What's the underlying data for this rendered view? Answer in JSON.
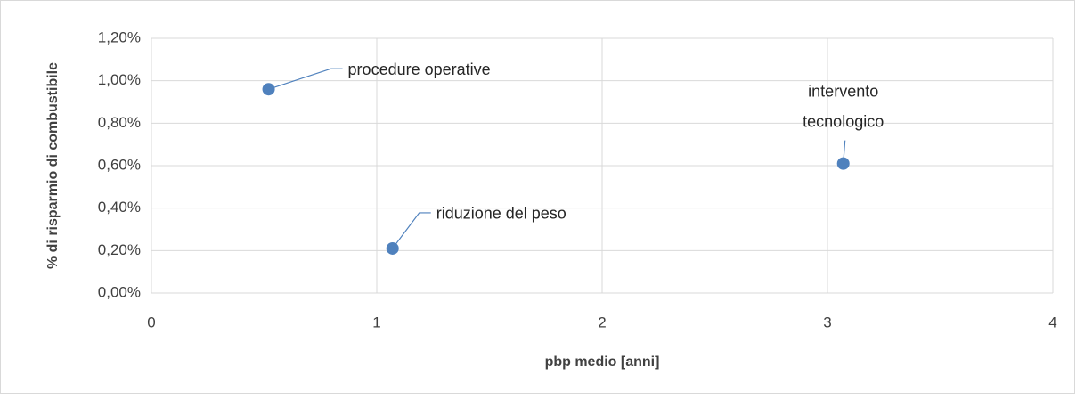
{
  "chart_data": {
    "type": "scatter",
    "xlabel": "pbp medio [anni]",
    "ylabel": "% di risparmio di combustibile",
    "xlim": [
      0,
      4
    ],
    "xticks": [
      0,
      1,
      2,
      3,
      4
    ],
    "ylim": [
      0,
      1.2
    ],
    "yticks": [
      {
        "value": 0,
        "label": "0,00%"
      },
      {
        "value": 0.2,
        "label": "0,20%"
      },
      {
        "value": 0.4,
        "label": "0,40%"
      },
      {
        "value": 0.6,
        "label": "0,60%"
      },
      {
        "value": 0.8,
        "label": "0,80%"
      },
      {
        "value": 1.0,
        "label": "1,00%"
      },
      {
        "value": 1.2,
        "label": "1,20%"
      }
    ],
    "grid": true,
    "color": "#4f81bd",
    "x": [
      0.52,
      1.07,
      3.07
    ],
    "values": [
      0.96,
      0.21,
      0.61
    ],
    "point_labels": [
      [
        "procedure operative"
      ],
      [
        "riduzione del peso"
      ],
      [
        "intervento",
        "tecnologico"
      ]
    ]
  }
}
